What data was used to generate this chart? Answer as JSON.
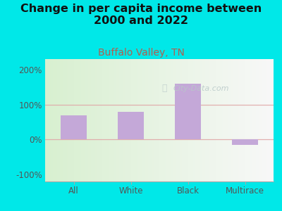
{
  "title": "Change in per capita income between\n2000 and 2022",
  "subtitle": "Buffalo Valley, TN",
  "categories": [
    "All",
    "White",
    "Black",
    "Multirace"
  ],
  "values": [
    70,
    80,
    160,
    -15
  ],
  "bar_color": "#c4a8d8",
  "outer_bg": "#00e8e8",
  "plot_bg_left": "#d8f0d0",
  "plot_bg_right": "#f8f8f8",
  "title_fontsize": 11.5,
  "subtitle_fontsize": 10,
  "subtitle_color": "#b06050",
  "title_color": "#111111",
  "tick_color": "#555555",
  "yticks": [
    -100,
    0,
    100,
    200
  ],
  "ytick_labels": [
    "-100%",
    "0%",
    "100%",
    "200%"
  ],
  "ylim": [
    -120,
    230
  ],
  "watermark": "City-Data.com",
  "watermark_color": "#b8c8c8",
  "grid_color": "#e0a8a8",
  "grid_alpha": 0.9
}
